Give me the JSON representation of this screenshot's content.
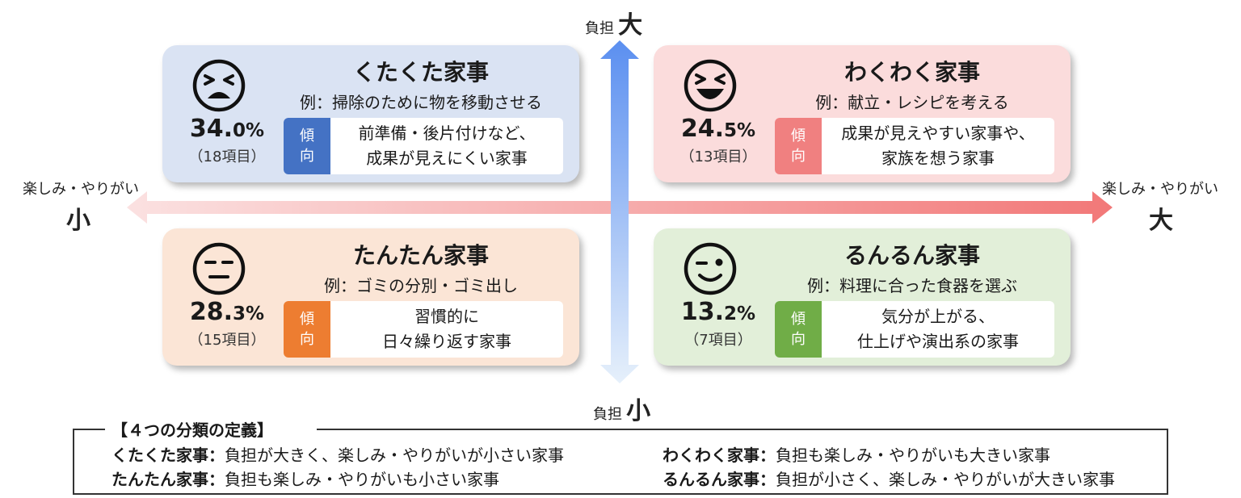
{
  "axes": {
    "vertical_label": "負担",
    "vertical_high": "大",
    "vertical_low": "小",
    "horizontal_label": "楽しみ・やりがい",
    "horizontal_low": "小",
    "horizontal_high": "大"
  },
  "quadrants": [
    {
      "title": "くたくた家事",
      "example": "例：掃除のために物を移動させる",
      "percent_int": "34.",
      "percent_frac": "0%",
      "items": "（18項目）",
      "trend_label_1": "傾",
      "trend_label_2": "向",
      "trend_line_1": "前準備・後片付けなど、",
      "trend_line_2": "成果が見えにくい家事",
      "face": "tired-face",
      "bg_color": "#dae3f3",
      "accent_color": "#4472c4"
    },
    {
      "title": "わくわく家事",
      "example": "例：献立・レシピを考える",
      "percent_int": "24.",
      "percent_frac": "5%",
      "items": "（13項目）",
      "trend_label_1": "傾",
      "trend_label_2": "向",
      "trend_line_1": "成果が見えやすい家事や、",
      "trend_line_2": "家族を想う家事",
      "face": "grinning-face",
      "bg_color": "#fbdcdc",
      "accent_color": "#f08080"
    },
    {
      "title": "たんたん家事",
      "example": "例：ゴミの分別・ゴミ出し",
      "percent_int": "28.",
      "percent_frac": "3%",
      "items": "（15項目）",
      "trend_label_1": "傾",
      "trend_label_2": "向",
      "trend_line_1": "習慣的に",
      "trend_line_2": "日々繰り返す家事",
      "face": "expressionless-face",
      "bg_color": "#fbe5d6",
      "accent_color": "#ed7d31"
    },
    {
      "title": "るんるん家事",
      "example": "例：料理に合った食器を選ぶ",
      "percent_int": "13.",
      "percent_frac": "2%",
      "items": "（7項目）",
      "trend_label_1": "傾",
      "trend_label_2": "向",
      "trend_line_1": "気分が上がる、",
      "trend_line_2": "仕上げや演出系の家事",
      "face": "winking-face",
      "bg_color": "#e2efd9",
      "accent_color": "#70ad47"
    }
  ],
  "definitions": {
    "heading": "【４つの分類の定義】",
    "rows": [
      {
        "name": "くたくた家事：",
        "desc": "負担が大きく、楽しみ・やりがいが小さい家事"
      },
      {
        "name": "わくわく家事：",
        "desc": "負担も楽しみ・やりがいも大きい家事"
      },
      {
        "name": "たんたん家事：",
        "desc": "負担も楽しみ・やりがいも小さい家事"
      },
      {
        "name": "るんるん家事：",
        "desc": "負担が小さく、楽しみ・やりがいが大きい家事"
      }
    ]
  }
}
